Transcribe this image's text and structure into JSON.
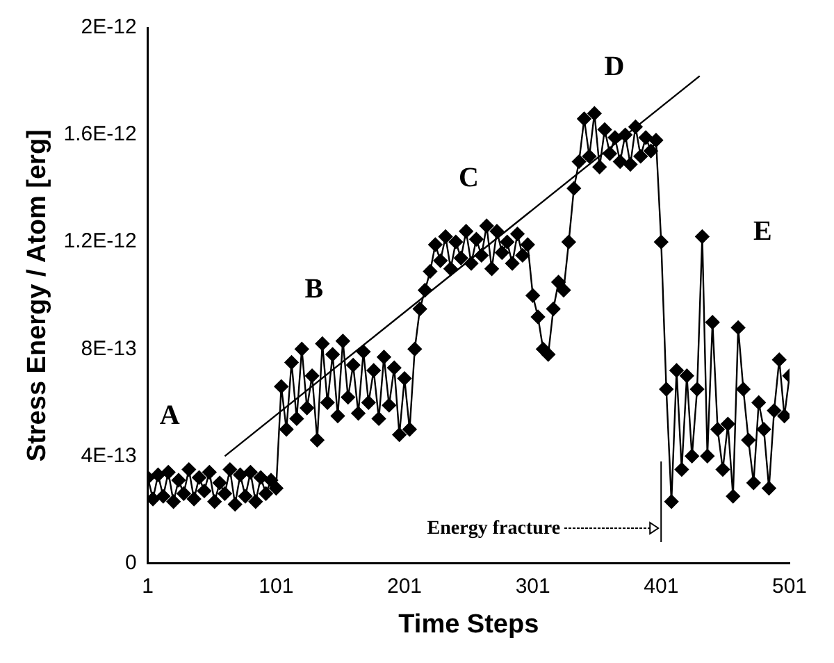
{
  "chart_data": {
    "type": "line",
    "xlabel": "Time Steps",
    "ylabel": "Stress Energy / Atom [erg]",
    "xlim": [
      1,
      501
    ],
    "xticks": [
      1,
      101,
      201,
      301,
      401,
      501
    ],
    "ylim": [
      0,
      2e-12
    ],
    "yticks": [
      0,
      {
        "value": 4e-13,
        "label": "4E-13"
      },
      {
        "value": 8e-13,
        "label": "8E-13"
      },
      {
        "value": 1.2e-12,
        "label": "1.2E-12"
      },
      {
        "value": 1.6e-12,
        "label": "1.6E-12"
      },
      {
        "value": 2e-12,
        "label": "2E-12"
      }
    ],
    "grid": false,
    "legend": false,
    "marker": "diamond",
    "line_style": "solid",
    "series": [
      {
        "color": "#000000",
        "x": [
          1,
          5,
          9,
          13,
          17,
          21,
          25,
          29,
          33,
          37,
          41,
          45,
          49,
          53,
          57,
          61,
          65,
          69,
          73,
          77,
          81,
          85,
          89,
          93,
          97,
          101,
          105,
          109,
          113,
          117,
          121,
          125,
          129,
          133,
          137,
          141,
          145,
          149,
          153,
          157,
          161,
          165,
          169,
          173,
          177,
          181,
          185,
          189,
          193,
          197,
          201,
          205,
          209,
          213,
          217,
          221,
          225,
          229,
          233,
          237,
          241,
          245,
          249,
          253,
          257,
          261,
          265,
          269,
          273,
          277,
          281,
          285,
          289,
          293,
          297,
          301,
          305,
          309,
          313,
          317,
          321,
          325,
          329,
          333,
          337,
          341,
          345,
          349,
          353,
          357,
          361,
          365,
          369,
          373,
          377,
          381,
          385,
          389,
          393,
          397,
          401,
          405,
          409,
          413,
          417,
          421,
          425,
          429,
          433,
          437,
          441,
          445,
          449,
          453,
          457,
          461,
          465,
          469,
          473,
          477,
          481,
          485,
          489,
          493,
          497,
          501
        ],
        "values": [
          3.2e-13,
          2.4e-13,
          3.3e-13,
          2.5e-13,
          3.4e-13,
          2.3e-13,
          3.1e-13,
          2.6e-13,
          3.5e-13,
          2.4e-13,
          3.2e-13,
          2.7e-13,
          3.4e-13,
          2.3e-13,
          3e-13,
          2.6e-13,
          3.5e-13,
          2.2e-13,
          3.3e-13,
          2.5e-13,
          3.4e-13,
          2.3e-13,
          3.2e-13,
          2.6e-13,
          3.1e-13,
          2.8e-13,
          6.6e-13,
          5e-13,
          7.5e-13,
          5.4e-13,
          8e-13,
          5.8e-13,
          7e-13,
          4.6e-13,
          8.2e-13,
          6e-13,
          7.8e-13,
          5.5e-13,
          8.3e-13,
          6.2e-13,
          7.4e-13,
          5.6e-13,
          7.9e-13,
          6e-13,
          7.2e-13,
          5.4e-13,
          7.7e-13,
          5.9e-13,
          7.3e-13,
          4.8e-13,
          6.9e-13,
          5e-13,
          8e-13,
          9.5e-13,
          1.02e-12,
          1.09e-12,
          1.19e-12,
          1.13e-12,
          1.22e-12,
          1.1e-12,
          1.2e-12,
          1.14e-12,
          1.24e-12,
          1.12e-12,
          1.21e-12,
          1.15e-12,
          1.26e-12,
          1.1e-12,
          1.24e-12,
          1.16e-12,
          1.2e-12,
          1.12e-12,
          1.23e-12,
          1.15e-12,
          1.19e-12,
          1e-12,
          9.2e-13,
          8e-13,
          7.8e-13,
          9.5e-13,
          1.05e-12,
          1.02e-12,
          1.2e-12,
          1.4e-12,
          1.5e-12,
          1.66e-12,
          1.52e-12,
          1.68e-12,
          1.48e-12,
          1.62e-12,
          1.53e-12,
          1.59e-12,
          1.5e-12,
          1.6e-12,
          1.49e-12,
          1.63e-12,
          1.52e-12,
          1.59e-12,
          1.54e-12,
          1.58e-12,
          1.2e-12,
          6.5e-13,
          2.3e-13,
          7.2e-13,
          3.5e-13,
          7e-13,
          4e-13,
          6.5e-13,
          1.22e-12,
          4e-13,
          9e-13,
          5e-13,
          3.5e-13,
          5.2e-13,
          2.5e-13,
          8.8e-13,
          6.5e-13,
          4.6e-13,
          3e-13,
          6e-13,
          5e-13,
          2.8e-13,
          5.7e-13,
          7.6e-13,
          5.5e-13,
          7e-13
        ]
      },
      {
        "type": "line",
        "marker": "none",
        "color": "#000000",
        "x": [
          61,
          431
        ],
        "values": [
          4e-13,
          1.82e-12
        ]
      }
    ],
    "annotations": [
      "A",
      "B",
      "C",
      "D",
      "E",
      "Energy fracture"
    ]
  }
}
